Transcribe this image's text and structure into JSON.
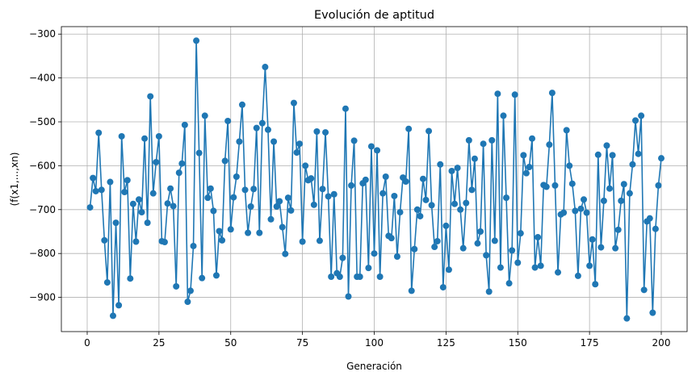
{
  "chart_data": {
    "type": "line",
    "title": "Evolución de aptitud",
    "xlabel": "Generación",
    "ylabel": "(f(x1,...,xn)",
    "xlim": [
      -9,
      209
    ],
    "ylim": [
      -978,
      -283
    ],
    "xticks": [
      0,
      25,
      50,
      75,
      100,
      125,
      150,
      175,
      200
    ],
    "yticks": [
      -900,
      -800,
      -700,
      -600,
      -500,
      -400,
      -300
    ],
    "grid": true,
    "color": "#1f77b4",
    "marker": "circle",
    "series": [
      {
        "x": [
          1,
          2,
          3,
          4,
          5,
          6,
          7,
          8,
          9,
          10,
          11,
          12,
          13,
          14,
          15,
          16,
          17,
          18,
          19,
          20,
          21,
          22,
          23,
          24,
          25,
          26,
          27,
          28,
          29,
          30,
          31,
          32,
          33,
          34,
          35,
          36,
          37,
          38,
          39,
          40,
          41,
          42,
          43,
          44,
          45,
          46,
          47,
          48,
          49,
          50,
          51,
          52,
          53,
          54,
          55,
          56,
          57,
          58,
          59,
          60,
          61,
          62,
          63,
          64,
          65,
          66,
          67,
          68,
          69,
          70,
          71,
          72,
          73,
          74,
          75,
          76,
          77,
          78,
          79,
          80,
          81,
          82,
          83,
          84,
          85,
          86,
          87,
          88,
          89,
          90,
          91,
          92,
          93,
          94,
          95,
          96,
          97,
          98,
          99,
          100,
          101,
          102,
          103,
          104,
          105,
          106,
          107,
          108,
          109,
          110,
          111,
          112,
          113,
          114,
          115,
          116,
          117,
          118,
          119,
          120,
          121,
          122,
          123,
          124,
          125,
          126,
          127,
          128,
          129,
          130,
          131,
          132,
          133,
          134,
          135,
          136,
          137,
          138,
          139,
          140,
          141,
          142,
          143,
          144,
          145,
          146,
          147,
          148,
          149,
          150,
          151,
          152,
          153,
          154,
          155,
          156,
          157,
          158,
          159,
          160,
          161,
          162,
          163,
          164,
          165,
          166,
          167,
          168,
          169,
          170,
          171,
          172,
          173,
          174,
          175,
          176,
          177,
          178,
          179,
          180,
          181,
          182,
          183,
          184,
          185,
          186,
          187,
          188,
          189,
          190,
          191,
          192,
          193,
          194,
          195,
          196,
          197,
          198,
          199,
          200
        ],
        "y": [
          -695,
          -628,
          -658,
          -525,
          -655,
          -770,
          -866,
          -637,
          -942,
          -730,
          -918,
          -533,
          -660,
          -633,
          -857,
          -687,
          -773,
          -677,
          -706,
          -538,
          -730,
          -442,
          -663,
          -592,
          -533,
          -772,
          -774,
          -686,
          -652,
          -692,
          -875,
          -616,
          -595,
          -507,
          -910,
          -885,
          -783,
          -315,
          -571,
          -856,
          -486,
          -673,
          -652,
          -703,
          -850,
          -749,
          -770,
          -589,
          -498,
          -745,
          -672,
          -625,
          -545,
          -461,
          -655,
          -753,
          -693,
          -653,
          -514,
          -753,
          -503,
          -375,
          -518,
          -722,
          -545,
          -693,
          -681,
          -740,
          -801,
          -673,
          -702,
          -457,
          -570,
          -550,
          -773,
          -600,
          -633,
          -629,
          -689,
          -522,
          -771,
          -653,
          -524,
          -670,
          -853,
          -665,
          -845,
          -853,
          -810,
          -470,
          -898,
          -645,
          -543,
          -853,
          -853,
          -640,
          -632,
          -833,
          -556,
          -800,
          -565,
          -853,
          -663,
          -625,
          -760,
          -765,
          -669,
          -807,
          -706,
          -627,
          -636,
          -516,
          -885,
          -790,
          -700,
          -715,
          -630,
          -678,
          -521,
          -690,
          -785,
          -772,
          -597,
          -877,
          -737,
          -837,
          -612,
          -687,
          -605,
          -700,
          -788,
          -685,
          -542,
          -655,
          -584,
          -777,
          -750,
          -550,
          -804,
          -887,
          -542,
          -771,
          -436,
          -832,
          -486,
          -673,
          -868,
          -793,
          -438,
          -821,
          -754,
          -576,
          -617,
          -603,
          -538,
          -832,
          -763,
          -828,
          -644,
          -648,
          -552,
          -434,
          -645,
          -843,
          -711,
          -707,
          -519,
          -600,
          -641,
          -703,
          -851,
          -698,
          -677,
          -707,
          -828,
          -768,
          -870,
          -575,
          -786,
          -680,
          -554,
          -652,
          -576,
          -788,
          -746,
          -680,
          -642,
          -948,
          -663,
          -597,
          -497,
          -573,
          -486,
          -883,
          -727,
          -720,
          -935,
          -744,
          -645,
          -583
        ]
      }
    ]
  }
}
